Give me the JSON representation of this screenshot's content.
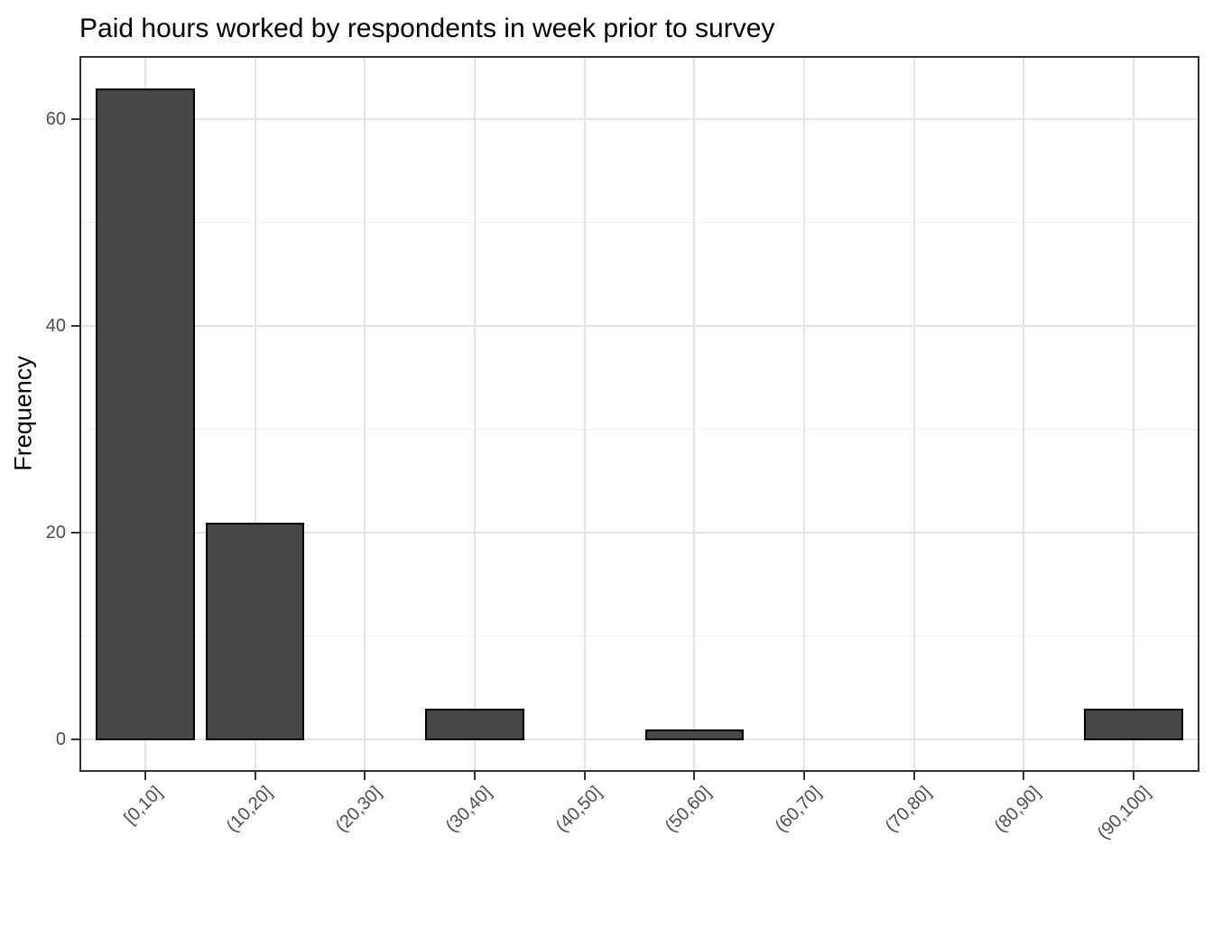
{
  "chart_data": {
    "type": "bar",
    "title": "Paid hours worked by respondents in week prior to survey",
    "xlabel": "",
    "ylabel": "Frequency",
    "categories": [
      "[0,10]",
      "(10,20]",
      "(20,30]",
      "(30,40]",
      "(40,50]",
      "(50,60]",
      "(60,70]",
      "(70,80]",
      "(80,90]",
      "(90,100]"
    ],
    "values": [
      63,
      21,
      0,
      3,
      0,
      1,
      0,
      0,
      0,
      3
    ],
    "yticks": [
      0,
      20,
      40,
      60
    ],
    "yminor_ticks": [
      10,
      30,
      50
    ],
    "ylim": [
      -3.15,
      66.15
    ],
    "bar_width_ratio": 0.9,
    "x_expand": 0.6,
    "grid": "on",
    "legend": "none",
    "colors": {
      "bar_fill": "#474747",
      "bar_stroke": "#000000",
      "grid_major": "#e3e3e3",
      "grid_minor": "#f1f1f1",
      "panel_border": "#333333",
      "axis_tick": "#333333",
      "tick_label": "#4d4d4d",
      "title": "#000000",
      "axis_title": "#000000",
      "background": "#ffffff"
    }
  }
}
